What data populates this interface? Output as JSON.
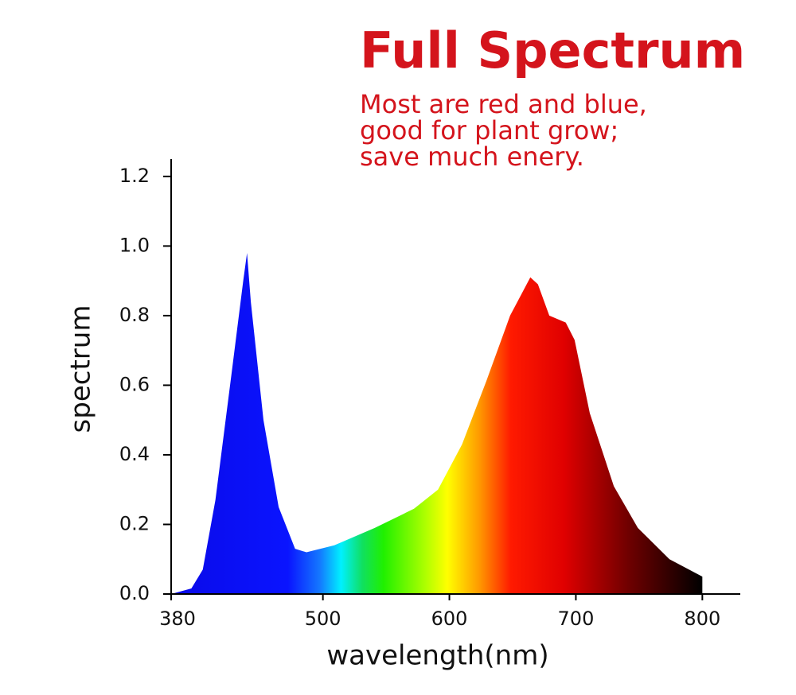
{
  "chart_data": {
    "type": "area",
    "title": "Full Spectrum",
    "subtitle": [
      "Most are red and blue,",
      "good for plant grow;",
      "save much enery."
    ],
    "x_label": "wavelength(nm)",
    "y_label": "spectrum",
    "x": [
      380,
      396,
      405,
      415,
      428,
      437,
      440,
      443,
      453,
      465,
      478,
      487,
      509,
      541,
      572,
      591,
      610,
      629,
      648,
      664,
      670,
      679,
      692,
      699,
      711,
      730,
      749,
      774,
      800
    ],
    "values": [
      0,
      0.016,
      0.07,
      0.27,
      0.64,
      0.9,
      0.98,
      0.84,
      0.5,
      0.25,
      0.13,
      0.12,
      0.14,
      0.19,
      0.245,
      0.3,
      0.43,
      0.61,
      0.8,
      0.91,
      0.89,
      0.8,
      0.78,
      0.73,
      0.52,
      0.31,
      0.19,
      0.1,
      0.05
    ],
    "xlim": [
      380,
      830
    ],
    "xticks": [
      380,
      500,
      600,
      700,
      800
    ],
    "ylim": [
      0,
      1.25
    ],
    "yticks": [
      {
        "value": 0,
        "label": "0.0"
      },
      0.2,
      0.4,
      0.6,
      0.8,
      {
        "value": 1,
        "label": "1.0"
      },
      1.2
    ],
    "title_color": "#d4141c"
  }
}
